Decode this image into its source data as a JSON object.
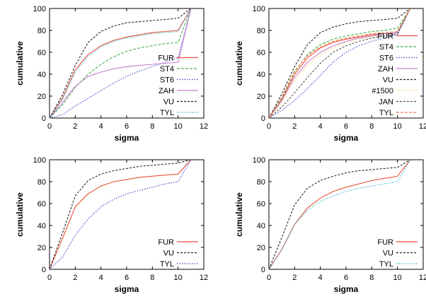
{
  "chart_data": [
    {
      "type": "line",
      "xlabel": "sigma",
      "ylabel": "cumulative",
      "xlim": [
        0,
        12
      ],
      "ylim": [
        0,
        100
      ],
      "xticks": [
        "0",
        "2",
        "4",
        "6",
        "8",
        "10",
        "12"
      ],
      "yticks": [
        "0",
        "20",
        "40",
        "60",
        "80",
        "100"
      ],
      "grid": false,
      "legend": "bottom-right",
      "x": [
        0,
        1,
        2,
        3,
        4,
        5,
        6,
        7,
        8,
        9,
        10,
        11
      ],
      "series": [
        {
          "name": "FUR",
          "color": "#e8503a",
          "dash": "",
          "values": [
            0,
            18,
            44,
            58,
            66,
            71,
            74,
            76,
            78,
            79,
            80,
            100
          ]
        },
        {
          "name": "ST4",
          "color": "#4caf50",
          "dash": "4,2",
          "values": [
            0,
            12,
            28,
            40,
            49,
            56,
            61,
            64,
            66,
            68,
            69,
            100
          ]
        },
        {
          "name": "ST6",
          "color": "#3344cc",
          "dash": "1.5,2",
          "values": [
            0,
            3,
            11,
            18,
            25,
            32,
            38,
            43,
            47,
            51,
            55,
            100
          ]
        },
        {
          "name": "ZAH",
          "color": "#c77dd0",
          "dash": "",
          "values": [
            0,
            14,
            29,
            38,
            42,
            45,
            47,
            48,
            49,
            50,
            51,
            100
          ]
        },
        {
          "name": "VU",
          "color": "#222222",
          "dash": "3,2",
          "values": [
            0,
            21,
            48,
            69,
            79,
            84,
            87,
            88,
            89,
            90,
            91,
            100
          ]
        },
        {
          "name": "TYL",
          "color": "#2ab0c0",
          "dash": "1.5,2",
          "values": [
            0,
            17,
            42,
            56,
            65,
            70,
            73,
            75,
            77,
            78,
            79,
            100
          ]
        }
      ]
    },
    {
      "type": "line",
      "xlabel": "sigma",
      "ylabel": "cumulative",
      "xlim": [
        0,
        12
      ],
      "ylim": [
        0,
        100
      ],
      "xticks": [
        "0",
        "2",
        "4",
        "6",
        "8",
        "10",
        "12"
      ],
      "yticks": [
        "0",
        "20",
        "40",
        "60",
        "80",
        "100"
      ],
      "grid": false,
      "legend": "bottom-right",
      "x": [
        0,
        1,
        2,
        3,
        4,
        5,
        6,
        7,
        8,
        9,
        10,
        11
      ],
      "series": [
        {
          "name": "FUR",
          "color": "#e8503a",
          "dash": "",
          "values": [
            0,
            17,
            40,
            55,
            64,
            69,
            72,
            74,
            76,
            77,
            78,
            100
          ]
        },
        {
          "name": "ST4",
          "color": "#4caf50",
          "dash": "4,2",
          "values": [
            0,
            18,
            42,
            58,
            67,
            72,
            75,
            77,
            79,
            80,
            82,
            100
          ]
        },
        {
          "name": "ST6",
          "color": "#3344cc",
          "dash": "1.5,2",
          "values": [
            0,
            7,
            16,
            27,
            39,
            51,
            60,
            66,
            70,
            73,
            76,
            100
          ]
        },
        {
          "name": "ZAH",
          "color": "#c77dd0",
          "dash": "",
          "values": [
            0,
            16,
            37,
            51,
            60,
            66,
            70,
            73,
            75,
            77,
            78,
            100
          ]
        },
        {
          "name": "VU",
          "color": "#222222",
          "dash": "3,2",
          "values": [
            0,
            22,
            47,
            67,
            78,
            83,
            86,
            88,
            89,
            90,
            91,
            100
          ]
        },
        {
          "name": "#1500",
          "color": "#f0cc5a",
          "dash": "1.5,2",
          "values": [
            0,
            14,
            34,
            48,
            58,
            64,
            69,
            72,
            74,
            76,
            77,
            100
          ]
        },
        {
          "name": "JAN",
          "color": "#555555",
          "dash": "3,2",
          "values": [
            0,
            10,
            23,
            37,
            50,
            60,
            66,
            70,
            73,
            75,
            77,
            100
          ]
        },
        {
          "name": "TYL",
          "color": "#e87b4a",
          "dash": "4,2",
          "values": [
            0,
            19,
            43,
            57,
            65,
            70,
            73,
            75,
            77,
            78,
            79,
            100
          ]
        }
      ]
    },
    {
      "type": "line",
      "xlabel": "sigma",
      "ylabel": "cumulative",
      "xlim": [
        0,
        12
      ],
      "ylim": [
        0,
        100
      ],
      "xticks": [
        "0",
        "2",
        "4",
        "6",
        "8",
        "10",
        "12"
      ],
      "yticks": [
        "0",
        "20",
        "40",
        "60",
        "80",
        "100"
      ],
      "grid": false,
      "legend": "bottom-right",
      "x": [
        0,
        1,
        2,
        3,
        4,
        5,
        6,
        7,
        8,
        9,
        10,
        11
      ],
      "series": [
        {
          "name": "FUR",
          "color": "#e8503a",
          "dash": "",
          "values": [
            0,
            28,
            57,
            69,
            76,
            80,
            82,
            84,
            85,
            86,
            87,
            100
          ]
        },
        {
          "name": "VU",
          "color": "#222222",
          "dash": "3,2",
          "values": [
            0,
            33,
            67,
            81,
            87,
            90,
            92,
            94,
            95,
            96,
            97,
            100
          ]
        },
        {
          "name": "TYL",
          "color": "#3344cc",
          "dash": "1.5,2",
          "values": [
            0,
            11,
            31,
            46,
            57,
            64,
            69,
            72,
            75,
            78,
            80,
            100
          ]
        }
      ]
    },
    {
      "type": "line",
      "xlabel": "sigma",
      "ylabel": "cumulative",
      "xlim": [
        0,
        12
      ],
      "ylim": [
        0,
        100
      ],
      "xticks": [
        "0",
        "2",
        "4",
        "6",
        "8",
        "10",
        "12"
      ],
      "yticks": [
        "0",
        "20",
        "40",
        "60",
        "80",
        "100"
      ],
      "grid": false,
      "legend": "bottom-right",
      "x": [
        0,
        1,
        2,
        3,
        4,
        5,
        6,
        7,
        8,
        9,
        10,
        11
      ],
      "series": [
        {
          "name": "FUR",
          "color": "#e8503a",
          "dash": "",
          "values": [
            0,
            18,
            41,
            56,
            65,
            71,
            75,
            78,
            81,
            83,
            85,
            100
          ]
        },
        {
          "name": "VU",
          "color": "#222222",
          "dash": "3,2",
          "values": [
            0,
            29,
            59,
            74,
            81,
            85,
            88,
            90,
            91,
            92,
            93,
            100
          ]
        },
        {
          "name": "TYL",
          "color": "#2ab0c0",
          "dash": "1.5,2",
          "values": [
            0,
            18,
            41,
            54,
            62,
            67,
            71,
            74,
            76,
            78,
            80,
            100
          ]
        }
      ]
    }
  ]
}
